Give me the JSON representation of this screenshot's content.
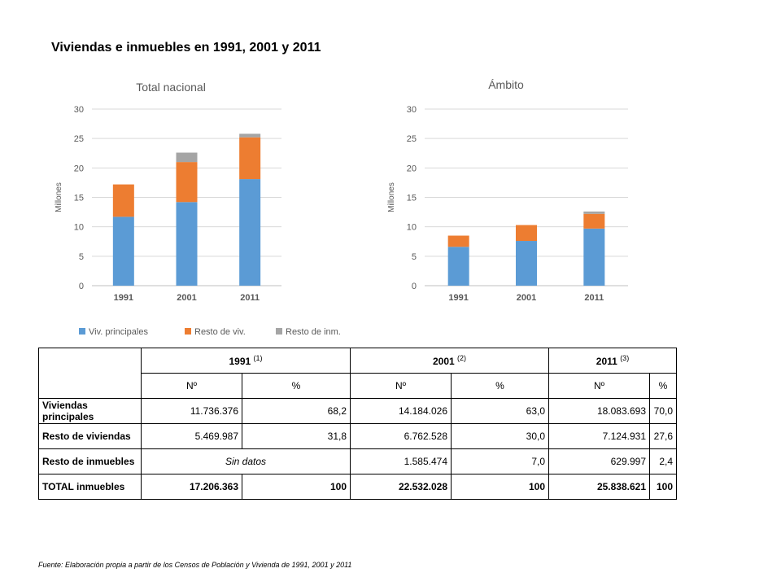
{
  "page_title": "Viviendas e inmuebles en 1991, 2001 y 2011",
  "colors": {
    "viv_principales": "#5b9bd5",
    "resto_viv": "#ed7d31",
    "resto_inm": "#a5a5a5",
    "grid": "#d9d9d9"
  },
  "chart_data": [
    {
      "type": "bar",
      "stacked": true,
      "title": "Total nacional",
      "ylabel": "Millones",
      "categories": [
        "1991",
        "2001",
        "2011"
      ],
      "ylim": [
        0,
        30
      ],
      "yticks": [
        "0",
        "5",
        "10",
        "15",
        "20",
        "25",
        "30"
      ],
      "grid": true,
      "series": [
        {
          "name": "Viv. principales",
          "values": [
            11.7,
            14.2,
            18.1
          ]
        },
        {
          "name": "Resto de viv.",
          "values": [
            5.5,
            6.8,
            7.1
          ]
        },
        {
          "name": "Resto de inm.",
          "values": [
            0,
            1.6,
            0.6
          ]
        }
      ]
    },
    {
      "type": "bar",
      "stacked": true,
      "title": "Ámbito",
      "ylabel": "Millones",
      "categories": [
        "1991",
        "2001",
        "2011"
      ],
      "ylim": [
        0,
        30
      ],
      "yticks": [
        "0",
        "5",
        "10",
        "15",
        "20",
        "25",
        "30"
      ],
      "grid": true,
      "series": [
        {
          "name": "Viv. principales",
          "values": [
            6.6,
            7.6,
            9.7
          ]
        },
        {
          "name": "Resto de viv.",
          "values": [
            1.9,
            2.7,
            2.5
          ]
        },
        {
          "name": "Resto de inm.",
          "values": [
            0,
            0,
            0.4
          ]
        }
      ]
    }
  ],
  "legend": [
    "Viv. principales",
    "Resto de viv.",
    "Resto de inm."
  ],
  "table": {
    "years": [
      {
        "label": "1991",
        "note": "(1)"
      },
      {
        "label": "2001",
        "note": "(2)"
      },
      {
        "label": "2011",
        "note": "(3)"
      }
    ],
    "subheaders": [
      "Nº",
      "%",
      "Nº",
      "%",
      "Nº",
      "%"
    ],
    "rows": [
      {
        "label": "Viviendas principales",
        "cells": [
          "11.736.376",
          "68,2",
          "14.184.026",
          "63,0",
          "18.083.693",
          "70,0"
        ]
      },
      {
        "label": "Resto de viviendas",
        "cells": [
          "5.469.987",
          "31,8",
          "6.762.528",
          "30,0",
          "7.124.931",
          "27,6"
        ]
      },
      {
        "label": "Resto de inmuebles",
        "sin_datos": "Sin datos",
        "cells": [
          "1.585.474",
          "7,0",
          "629.997",
          "2,4"
        ]
      },
      {
        "label": "TOTAL inmuebles",
        "cells": [
          "17.206.363",
          "100",
          "22.532.028",
          "100",
          "25.838.621",
          "100"
        ]
      }
    ]
  },
  "source": "Fuente: Elaboración propia a partir de los Censos de Población y Vivienda de 1991, 2001 y 2011"
}
